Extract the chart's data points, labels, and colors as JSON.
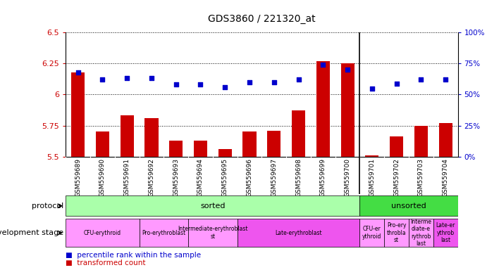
{
  "title": "GDS3860 / 221320_at",
  "samples": [
    "GSM559689",
    "GSM559690",
    "GSM559691",
    "GSM559692",
    "GSM559693",
    "GSM559694",
    "GSM559695",
    "GSM559696",
    "GSM559697",
    "GSM559698",
    "GSM559699",
    "GSM559700",
    "GSM559701",
    "GSM559702",
    "GSM559703",
    "GSM559704"
  ],
  "transformed_count": [
    6.18,
    5.7,
    5.83,
    5.81,
    5.63,
    5.63,
    5.56,
    5.7,
    5.71,
    5.87,
    6.27,
    6.25,
    5.51,
    5.66,
    5.75,
    5.77
  ],
  "percentile_rank": [
    68,
    62,
    63,
    63,
    58,
    58,
    56,
    60,
    60,
    62,
    74,
    70,
    55,
    59,
    62,
    62
  ],
  "ylim_left": [
    5.5,
    6.5
  ],
  "ylim_right": [
    0,
    100
  ],
  "yticks_left": [
    5.5,
    5.75,
    6.0,
    6.25,
    6.5
  ],
  "yticks_right": [
    0,
    25,
    50,
    75,
    100
  ],
  "bar_color": "#cc0000",
  "dot_color": "#0000cc",
  "title_fontsize": 10,
  "protocol_groups": [
    {
      "label": "sorted",
      "start": 0,
      "end": 12,
      "color": "#aaffaa"
    },
    {
      "label": "unsorted",
      "start": 12,
      "end": 16,
      "color": "#44dd44"
    }
  ],
  "dev_groups": [
    {
      "label": "CFU-erythroid",
      "start": 0,
      "end": 3,
      "color": "#ff99ff"
    },
    {
      "label": "Pro-erythroblast",
      "start": 3,
      "end": 5,
      "color": "#ff99ff"
    },
    {
      "label": "Intermediate-erythroblast\nst",
      "start": 5,
      "end": 7,
      "color": "#ff99ff"
    },
    {
      "label": "Late-erythroblast",
      "start": 7,
      "end": 12,
      "color": "#ee55ee"
    },
    {
      "label": "CFU-er\nythroid",
      "start": 12,
      "end": 13,
      "color": "#ff99ff"
    },
    {
      "label": "Pro-ery\nthrobla\nst",
      "start": 13,
      "end": 14,
      "color": "#ff99ff"
    },
    {
      "label": "Interme\ndiate-e\nrythrob\nlast",
      "start": 14,
      "end": 15,
      "color": "#ff99ff"
    },
    {
      "label": "Late-er\nythrob\nlast",
      "start": 15,
      "end": 16,
      "color": "#ee55ee"
    }
  ]
}
